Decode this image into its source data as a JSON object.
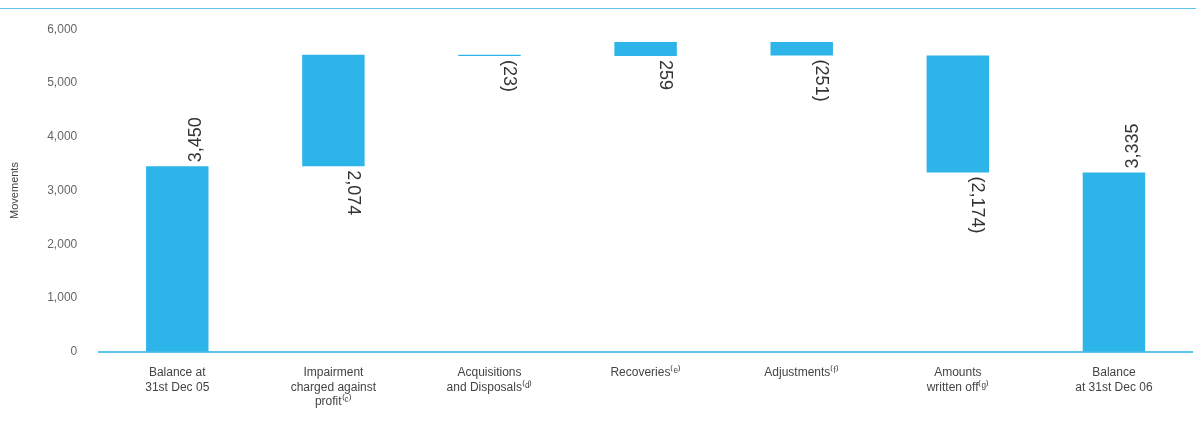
{
  "chart_data": {
    "type": "bar",
    "ylabel": "Movements",
    "categories": [
      "Balance at\n31st Dec 05",
      "Impairment\ncharged against\nprofit⁽ᶜ⁾",
      "Acquisitions\nand Disposals⁽ᵈ⁾",
      "Recoveries⁽ᵉ⁾",
      "Adjustments⁽ᶠ⁾",
      "Amounts\nwritten off⁽ᵍ⁾",
      "Balance\nat 31st Dec 06"
    ],
    "values": [
      3450,
      2074,
      -23,
      259,
      -251,
      -2174,
      3335
    ],
    "base": [
      0,
      3450,
      5524,
      5501,
      5760,
      5509,
      0
    ],
    "value_labels": [
      "3,450",
      "2,074",
      "(23)",
      "259",
      "(251)",
      "(2,174)",
      "3,335"
    ],
    "color": "#2db4e8",
    "ylim": [
      0,
      6000
    ],
    "yticks": [
      {
        "value": 0,
        "label": "0"
      },
      {
        "value": 1000,
        "label": "1,000"
      },
      {
        "value": 2000,
        "label": "2,000"
      },
      {
        "value": 3000,
        "label": "3,000"
      },
      {
        "value": 4000,
        "label": "4,000"
      },
      {
        "value": 5000,
        "label": "5,000"
      },
      {
        "value": 6000,
        "label": "6,000"
      }
    ],
    "grid": false,
    "legend": false
  }
}
